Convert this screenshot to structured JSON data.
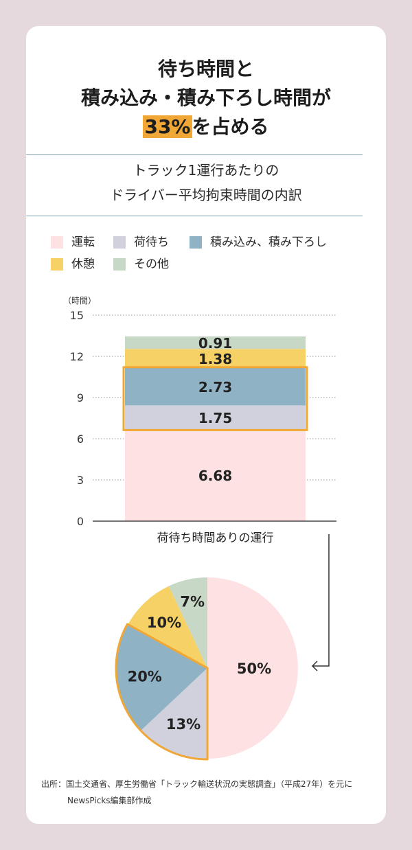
{
  "title": {
    "line1": "待ち時間と",
    "line2": "積み込み・積み下ろし時間が",
    "highlight": "33%",
    "line3_rest": "を占める"
  },
  "subtitle": {
    "line1": "トラック1運行あたりの",
    "line2": "ドライバー平均拘束時間の内訳"
  },
  "legend": [
    {
      "label": "運転",
      "color": "#fde1e3"
    },
    {
      "label": "荷待ち",
      "color": "#d0d1dc"
    },
    {
      "label": "積み込み、積み下ろし",
      "color": "#8fb2c5"
    },
    {
      "label": "休憩",
      "color": "#f6d266"
    },
    {
      "label": "その他",
      "color": "#c7d8c6"
    }
  ],
  "source": {
    "line1": "出所：国土交通省、厚生労働省「トラック輸送状況の実態調査」（平成27年）を元に",
    "line2": "NewsPicks編集部作成"
  },
  "colors": {
    "highlight_border": "#f0a736",
    "driving": "#fde1e3",
    "waiting": "#d0d1dc",
    "loading": "#8fb2c5",
    "rest": "#f6d266",
    "other": "#c7d8c6"
  },
  "chart_data": [
    {
      "type": "bar",
      "stacked": true,
      "ylabel": "（時間）",
      "ylim": [
        0,
        15
      ],
      "yticks": [
        0,
        3,
        6,
        9,
        12,
        15
      ],
      "grid": true,
      "categories": [
        "荷待ち時間ありの運行"
      ],
      "series": [
        {
          "name": "運転",
          "values": [
            6.68
          ],
          "label": "6.68"
        },
        {
          "name": "荷待ち",
          "values": [
            1.75
          ],
          "label": "1.75"
        },
        {
          "name": "積み込み、積み下ろし",
          "values": [
            2.73
          ],
          "label": "2.73"
        },
        {
          "name": "休憩",
          "values": [
            1.38
          ],
          "label": "1.38"
        },
        {
          "name": "その他",
          "values": [
            0.91
          ],
          "label": "0.91"
        }
      ],
      "highlighted_series": [
        "荷待ち",
        "積み込み、積み下ろし"
      ]
    },
    {
      "type": "pie",
      "slices": [
        {
          "name": "運転",
          "value": 50,
          "label": "50%"
        },
        {
          "name": "荷待ち",
          "value": 13,
          "label": "13%"
        },
        {
          "name": "積み込み、積み下ろし",
          "value": 20,
          "label": "20%"
        },
        {
          "name": "休憩",
          "value": 10,
          "label": "10%"
        },
        {
          "name": "その他",
          "value": 7,
          "label": "7%"
        }
      ],
      "highlighted_slices": [
        "荷待ち",
        "積み込み、積み下ろし"
      ]
    }
  ]
}
